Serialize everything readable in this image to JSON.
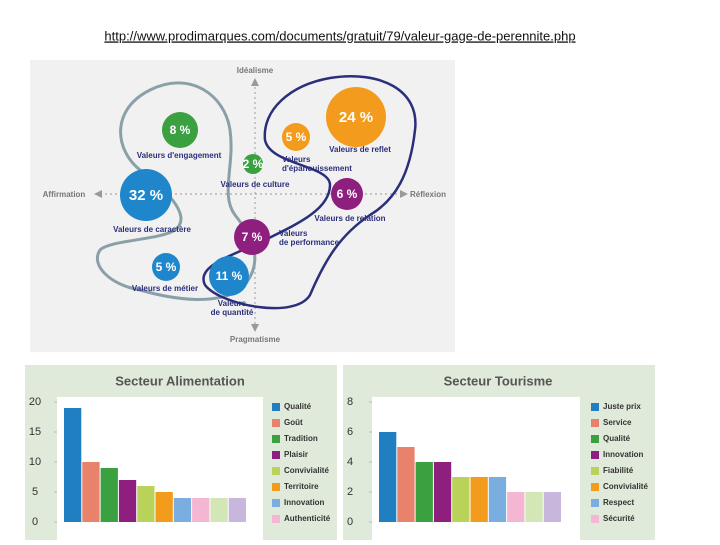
{
  "url": "http://www.prodimarques.com/documents/gratuit/79/valeur-gage-de-perennite.php",
  "diagram": {
    "axes": {
      "top": "Idéalisme",
      "bottom": "Pragmatisme",
      "left": "Affirmation",
      "right": "Réflexion"
    },
    "nodes": [
      {
        "label": "24 %",
        "caption": [
          "Valeurs de reflet"
        ],
        "color": "#f39b1c"
      },
      {
        "label": "8 %",
        "caption": [
          "Valeurs d'engagement"
        ],
        "color": "#3aa040"
      },
      {
        "label": "5 %",
        "caption": [
          "Valeurs",
          "d'épanouissement"
        ],
        "color": "#f39b1c"
      },
      {
        "label": "2 %",
        "caption": [
          "Valeurs de culture"
        ],
        "color": "#3aa040"
      },
      {
        "label": "32 %",
        "caption": [
          "Valeurs de caractère"
        ],
        "color": "#1f86cc"
      },
      {
        "label": "6 %",
        "caption": [
          "Valeurs de relation"
        ],
        "color": "#8e1f7e"
      },
      {
        "label": "7 %",
        "caption": [
          "Valeurs",
          "de performance"
        ],
        "color": "#8e1f7e"
      },
      {
        "label": "5 %",
        "caption": [
          "Valeurs de métier"
        ],
        "color": "#1f86cc"
      },
      {
        "label": "11 %",
        "caption": [
          "Valeurs",
          "de quantité"
        ],
        "color": "#1f86cc"
      }
    ]
  },
  "chart_data": [
    {
      "type": "bar",
      "title": "Secteur Alimentation",
      "categories": [
        "Qualité",
        "Goût",
        "Tradition",
        "Plaisir",
        "Convivialité",
        "Territoire",
        "Innovation",
        "Authenticité",
        null,
        null
      ],
      "values": [
        19,
        10,
        9,
        7,
        6,
        5,
        4,
        4,
        4,
        4
      ],
      "colors": [
        "#1f7fc1",
        "#e8826b",
        "#3aa040",
        "#8e1f7e",
        "#b9d35a",
        "#f39b1c",
        "#7aaee0",
        "#f4b6d2",
        "#d3e6b5",
        "#c9b6dc"
      ],
      "ylim": [
        0,
        20
      ],
      "yticks": [
        0,
        5,
        10,
        15,
        20
      ],
      "grid": false
    },
    {
      "type": "bar",
      "title": "Secteur Tourisme",
      "categories": [
        "Juste prix",
        "Service",
        "Qualité",
        "Innovation",
        "Fiabilité",
        "Convivialité",
        "Respect",
        "Sécurité",
        null,
        null
      ],
      "values": [
        6,
        5,
        4,
        4,
        3,
        3,
        3,
        2,
        2,
        2
      ],
      "colors": [
        "#1f7fc1",
        "#e8826b",
        "#3aa040",
        "#8e1f7e",
        "#b9d35a",
        "#f39b1c",
        "#7aaee0",
        "#f4b6d2",
        "#d3e6b5",
        "#c9b6dc"
      ],
      "ylim": [
        0,
        8
      ],
      "yticks": [
        0,
        2,
        4,
        6,
        8
      ],
      "grid": false
    }
  ]
}
